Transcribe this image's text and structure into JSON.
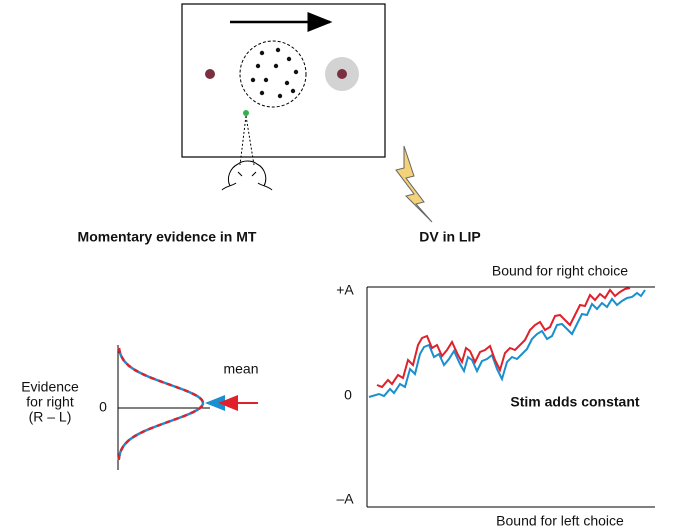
{
  "left_panel": {
    "title": "Momentary evidence in MT",
    "y_label": [
      "Evidence",
      "for right",
      "(R – L)"
    ],
    "zero_label": "0",
    "mean_label": "mean"
  },
  "right_panel": {
    "title": "DV in LIP",
    "upper_bound": "Bound for right choice",
    "lower_bound": "Bound for left choice",
    "ticks": [
      "+A",
      "0",
      "–A"
    ],
    "annotation": "Stim adds constant"
  }
}
